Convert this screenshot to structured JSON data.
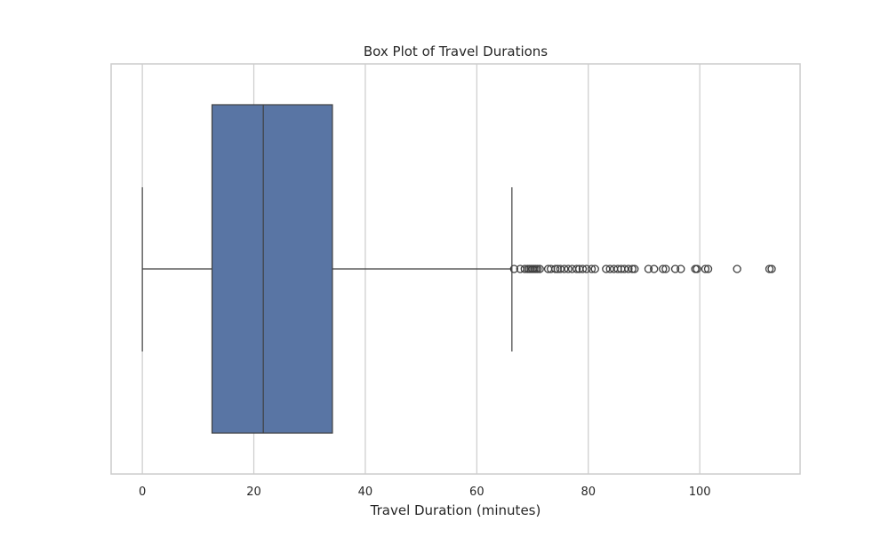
{
  "chart_data": {
    "type": "box",
    "orientation": "horizontal",
    "title": "Box Plot of Travel Durations",
    "xlabel": "Travel Duration (minutes)",
    "ylabel": "",
    "xlim": [
      -5.6,
      118
    ],
    "xticks": [
      0,
      20,
      40,
      60,
      80,
      100
    ],
    "xtick_labels": [
      "0",
      "20",
      "40",
      "60",
      "80",
      "100"
    ],
    "grid": true,
    "box": {
      "min": 0,
      "q1": 12.5,
      "median": 21.7,
      "q3": 34.1,
      "whisker_high": 66.3,
      "color": "#5975a4"
    },
    "outliers": [
      66.7,
      67.8,
      68.6,
      69.1,
      69.4,
      69.7,
      70.0,
      70.3,
      70.6,
      70.9,
      71.3,
      72.8,
      73.3,
      74.1,
      74.5,
      75.0,
      75.7,
      76.4,
      77.1,
      77.9,
      78.4,
      79.0,
      79.7,
      80.6,
      81.2,
      83.2,
      83.9,
      84.6,
      85.3,
      85.9,
      86.5,
      87.2,
      87.9,
      88.3,
      90.8,
      91.8,
      93.4,
      93.9,
      95.6,
      96.6,
      99.2,
      99.5,
      101.0,
      101.5,
      106.7,
      112.5,
      112.9
    ]
  }
}
